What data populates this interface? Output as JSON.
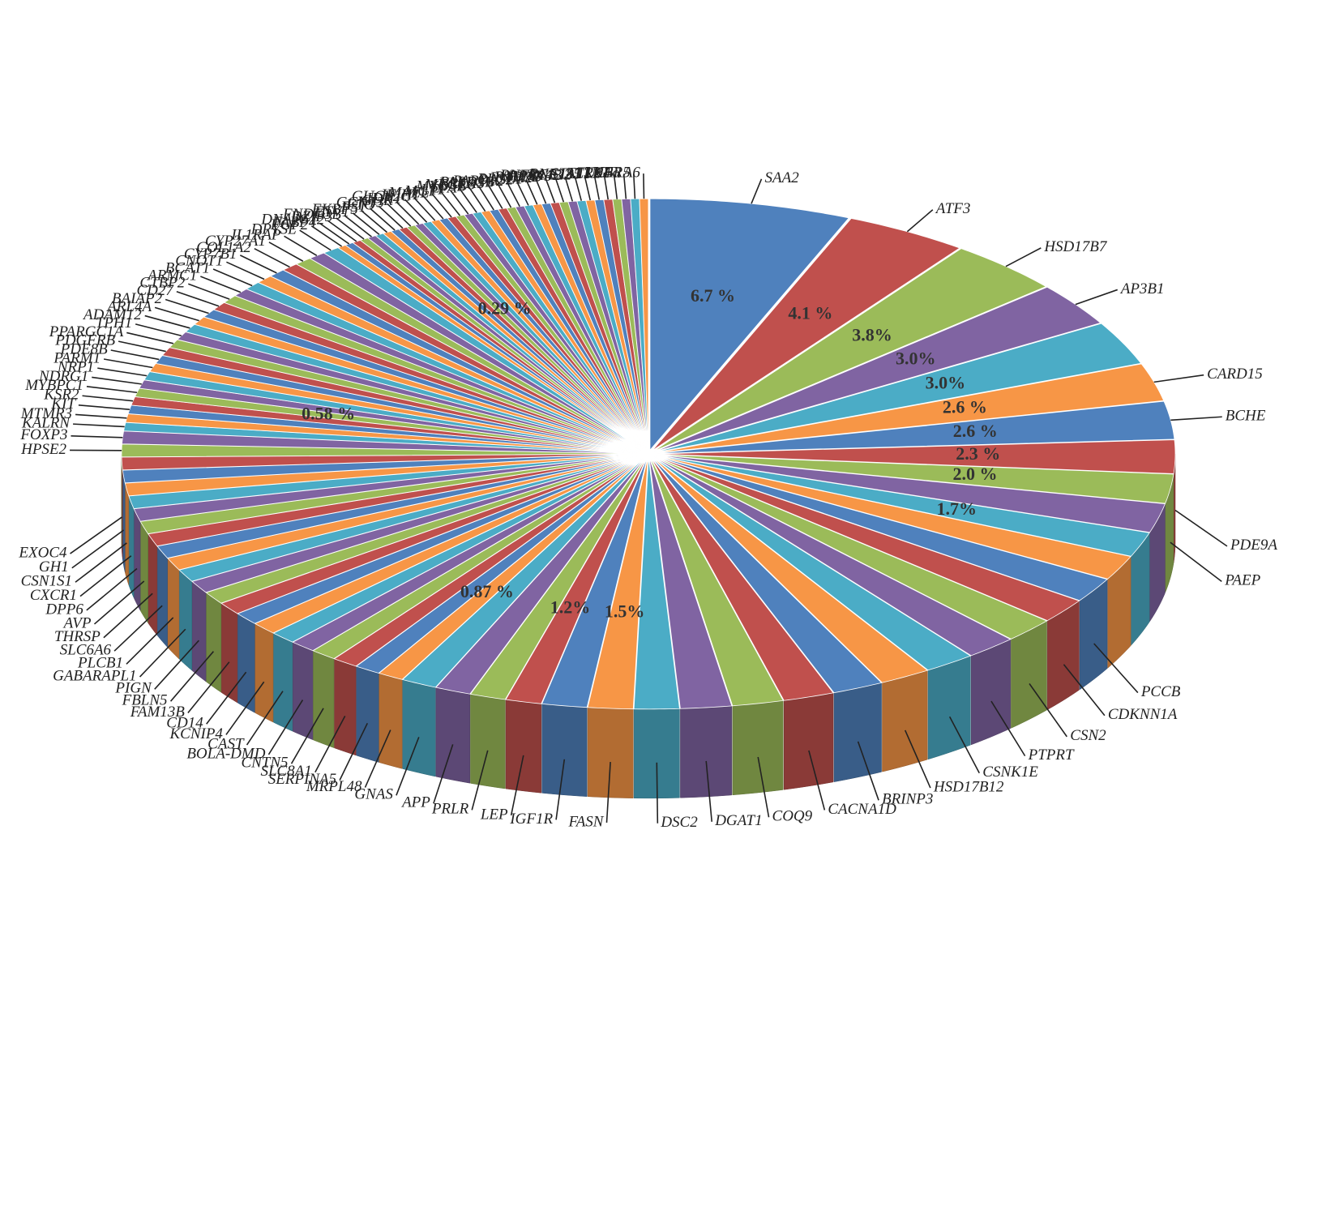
{
  "chart_data": {
    "type": "pie",
    "categories": [
      "SAA2",
      "ATF3",
      "HSD17B7",
      "AP3B1",
      null,
      "CARD15",
      "BCHE",
      "PDE9A",
      "PAEP",
      null,
      null,
      null,
      "PCCB",
      "CDKNN1A",
      "CSN2",
      "PTPRT",
      "CSNK1E",
      "HSD17B12",
      "BRINP3",
      "CACNA1D",
      "COQ9",
      "DGAT1",
      "DSC2",
      "FASN",
      "IGF1R",
      "LEP",
      "PRLR",
      "APP",
      "GNAS",
      "MRPL48",
      "SERPINA5",
      "SLC8A1",
      "CNTN5",
      "BOLA-DMD",
      "CAST",
      "KCNIP4",
      "CD14",
      "FAM13B",
      "FBLN5",
      "PIGN",
      "GABARAPL1",
      "PLCB1",
      "SLC6A6",
      "THRSP",
      "AVP",
      "DPP6",
      "CXCR1",
      "CSN1S1",
      "GH1",
      "EXOC4",
      "HPSE2",
      "FOXP3",
      "KALRN",
      "MTMR3",
      "KIT",
      "KSR2",
      "MYBPC1",
      "NDRG1",
      "NRP1",
      "PARM1",
      "PDE8B",
      "PDGFRB",
      "PPARGC1A",
      "TPH1",
      "ADAM12",
      "ARL4A",
      "BAIAP2",
      "CD27",
      "CTBP2",
      "ARMC1",
      "BCAT1",
      "CNOT1",
      "CYP7B1",
      "COL1A2",
      "CYP27A1",
      "IL1RAP",
      "DPYSL",
      "FGF2",
      "FABP4",
      "DNAJC12",
      "DZIP3",
      "FNDC3B",
      "ETV1",
      "FKBP5",
      "FST",
      "FTO",
      "GCNT3",
      "GHR",
      "IDH1",
      "GUCY2C",
      "IFIH1",
      "MAEL",
      "MGP",
      "LTF",
      "LPA",
      "MYO3B",
      "MFGE8",
      "NR1H3",
      "PARD3B",
      "PARP12",
      "OAS2",
      "PLCE1",
      "PMM2",
      "PTPRD",
      "RPAP3",
      "RNF144B",
      "RGS22",
      "RNF185",
      "STAT1",
      "TLR2",
      "TLR4",
      "TNFα",
      "UBR5",
      "UGT1A6"
    ],
    "values": [
      6.7,
      4.1,
      3.8,
      3.0,
      3.0,
      2.6,
      2.6,
      2.3,
      2.0,
      2.0,
      1.7,
      1.7,
      1.7,
      1.7,
      1.7,
      1.7,
      1.7,
      1.7,
      1.7,
      1.7,
      1.7,
      1.7,
      1.5,
      1.5,
      1.5,
      1.2,
      1.2,
      1.2,
      1.2,
      0.87,
      0.87,
      0.87,
      0.87,
      0.87,
      0.87,
      0.87,
      0.87,
      0.87,
      0.87,
      0.87,
      0.87,
      0.87,
      0.87,
      0.87,
      0.87,
      0.87,
      0.87,
      0.87,
      0.87,
      0.87,
      0.87,
      0.87,
      0.58,
      0.58,
      0.58,
      0.58,
      0.58,
      0.58,
      0.58,
      0.58,
      0.58,
      0.58,
      0.58,
      0.58,
      0.58,
      0.58,
      0.58,
      0.58,
      0.58,
      0.58,
      0.58,
      0.58,
      0.58,
      0.58,
      0.58,
      0.58,
      0.58,
      0.29,
      0.29,
      0.29,
      0.29,
      0.29,
      0.29,
      0.29,
      0.29,
      0.29,
      0.29,
      0.29,
      0.29,
      0.29,
      0.29,
      0.29,
      0.29,
      0.29,
      0.29,
      0.29,
      0.29,
      0.29,
      0.29,
      0.29,
      0.29,
      0.29,
      0.29,
      0.29,
      0.29,
      0.29,
      0.29,
      0.29,
      0.29,
      0.29,
      0.29,
      0.29,
      0.29,
      0.29
    ],
    "value_labels": [
      "6.7 %",
      "4.1 %",
      "3.8%",
      "3.0%",
      "3.0%",
      "2.6 %",
      "2.6 %",
      "2.3 %",
      "2.0 %",
      null,
      "1.7%",
      null,
      null,
      null,
      null,
      null,
      null,
      null,
      null,
      null,
      null,
      null,
      null,
      "1.5%",
      null,
      "1.2%",
      null,
      null,
      null,
      "0.87 %",
      null,
      null,
      null,
      null,
      null,
      null,
      null,
      null,
      null,
      null,
      null,
      null,
      null,
      null,
      null,
      null,
      null,
      null,
      null,
      null,
      null,
      null,
      null,
      null,
      null,
      null,
      "0.58 %",
      null,
      null,
      null,
      null,
      null,
      null,
      null,
      null,
      null,
      null,
      null,
      null,
      null,
      null,
      null,
      null,
      null,
      null,
      null,
      null,
      null,
      null,
      null,
      null,
      null,
      null,
      null,
      null,
      null,
      null,
      "0.29 %",
      null,
      null,
      null,
      null,
      null,
      null,
      null,
      null,
      null,
      null,
      null,
      null,
      null,
      null,
      null,
      null,
      null,
      null,
      null,
      null,
      null,
      null,
      null,
      null,
      null,
      null
    ],
    "colors": [
      "#4f81bd",
      "#c0504d",
      "#9bbb59",
      "#8064a2",
      "#4bacc6",
      "#f79646"
    ]
  }
}
